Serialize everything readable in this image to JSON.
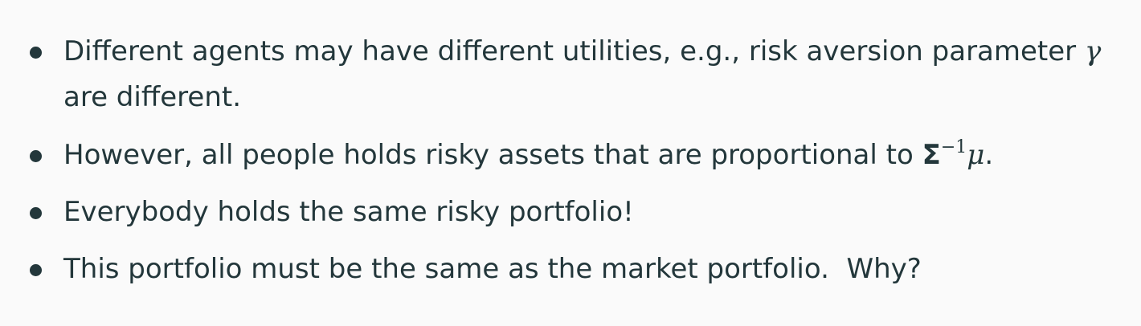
{
  "bullets": [
    {
      "line1": "Different agents may have different utilities, e.g., risk aversion parameter ",
      "symbol": "γ",
      "line2": "are different."
    },
    {
      "text": "However, all people holds risky assets that are proportional to ",
      "sigma": "Σ",
      "exponent": "−1",
      "mu": "μ",
      "end": "."
    },
    {
      "text": "Everybody holds the same risky portfolio!"
    },
    {
      "text": "This portfolio must be the same as the market portfolio.  Why?"
    }
  ],
  "colors": {
    "text": "#23373b",
    "background": "#fafafa"
  }
}
